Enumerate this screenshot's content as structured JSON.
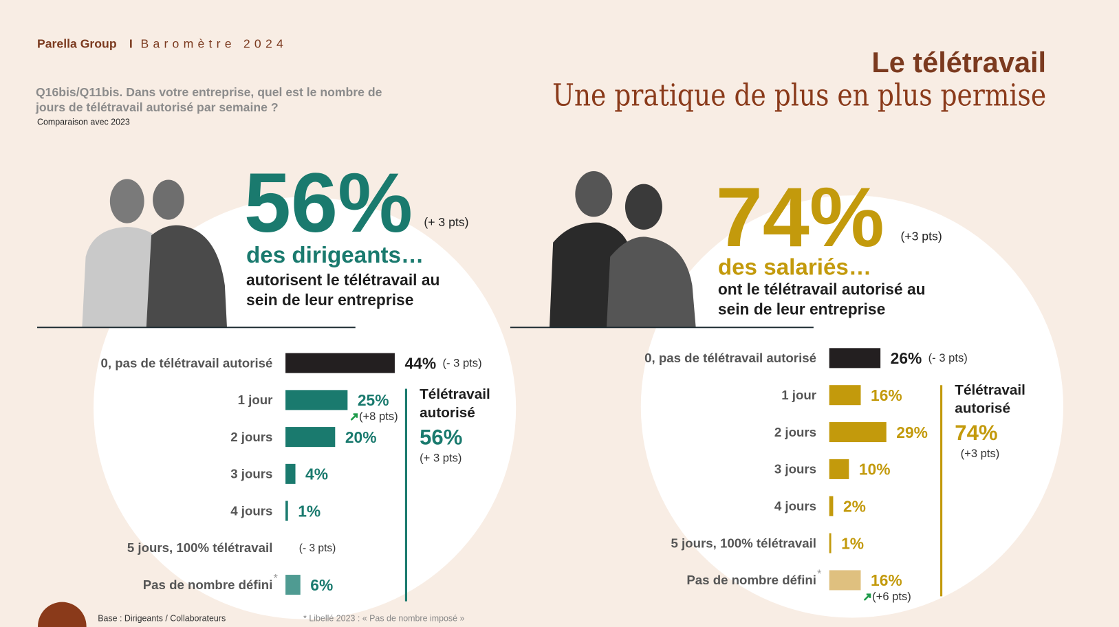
{
  "header": {
    "brand": "Parella Group",
    "separator": "I",
    "edition": "Baromètre 2024"
  },
  "title": "Le télétravail",
  "subtitle": "Une pratique de plus en plus permise",
  "question": [
    "Q16bis/Q11bis. Dans votre entreprise, quel est le nombre de",
    "jours de télétravail autorisé par semaine ?"
  ],
  "comparison": "Comparaison avec 2023",
  "chart_data": [
    {
      "type": "bar",
      "headline": {
        "value": 56,
        "label": "56%",
        "change": "(+ 3 pts)",
        "group": "des dirigeants…",
        "description": [
          "autorisent le télétravail au",
          "sein de leur entreprise"
        ]
      },
      "categories": [
        "0, pas de télétravail autorisé",
        "1 jour",
        "2 jours",
        "3 jours",
        "4 jours",
        "5 jours, 100% télétravail",
        "Pas de nombre défini"
      ],
      "footnote_marker": "*",
      "values": [
        44,
        25,
        20,
        4,
        1,
        null,
        6
      ],
      "value_labels": [
        "44%",
        "25%",
        "20%",
        "4%",
        "1%",
        null,
        "6%"
      ],
      "changes": [
        "(- 3 pts)",
        "(+8 pts)",
        null,
        null,
        null,
        "(- 3 pts)",
        null
      ],
      "colors": [
        "#231f20",
        "#1a7a6e",
        "#1a7a6e",
        "#1a7a6e",
        "#1a7a6e",
        "#1a7a6e",
        "#4f9b92"
      ],
      "accent": "#1a7a6e",
      "summary": {
        "label": [
          "Télétravail",
          "autorisé"
        ],
        "value": 56,
        "value_label": "56%",
        "change": "(+ 3 pts)"
      }
    },
    {
      "type": "bar",
      "headline": {
        "value": 74,
        "label": "74%",
        "change": "(+3 pts)",
        "group": "des salariés…",
        "description": [
          "ont le télétravail autorisé au",
          "sein de leur entreprise"
        ]
      },
      "categories": [
        "0, pas de télétravail autorisé",
        "1 jour",
        "2 jours",
        "3 jours",
        "4 jours",
        "5 jours, 100% télétravail",
        "Pas de nombre défini"
      ],
      "footnote_marker": "*",
      "values": [
        26,
        16,
        29,
        10,
        2,
        1,
        16
      ],
      "value_labels": [
        "26%",
        "16%",
        "29%",
        "10%",
        "2%",
        "1%",
        "16%"
      ],
      "changes": [
        "(- 3 pts)",
        null,
        null,
        null,
        null,
        null,
        "(+6 pts)"
      ],
      "colors": [
        "#231f20",
        "#c39a0c",
        "#c39a0c",
        "#c39a0c",
        "#c39a0c",
        "#c39a0c",
        "#dfc07f"
      ],
      "accent": "#c39a0c",
      "summary": {
        "label": [
          "Télétravail",
          "autorisé"
        ],
        "value": 74,
        "value_label": "74%",
        "change": "(+3 pts)"
      }
    }
  ],
  "footer": {
    "base": "Base : Dirigeants / Collaborateurs",
    "note": "* Libellé 2023 : « Pas de nombre imposé »"
  }
}
